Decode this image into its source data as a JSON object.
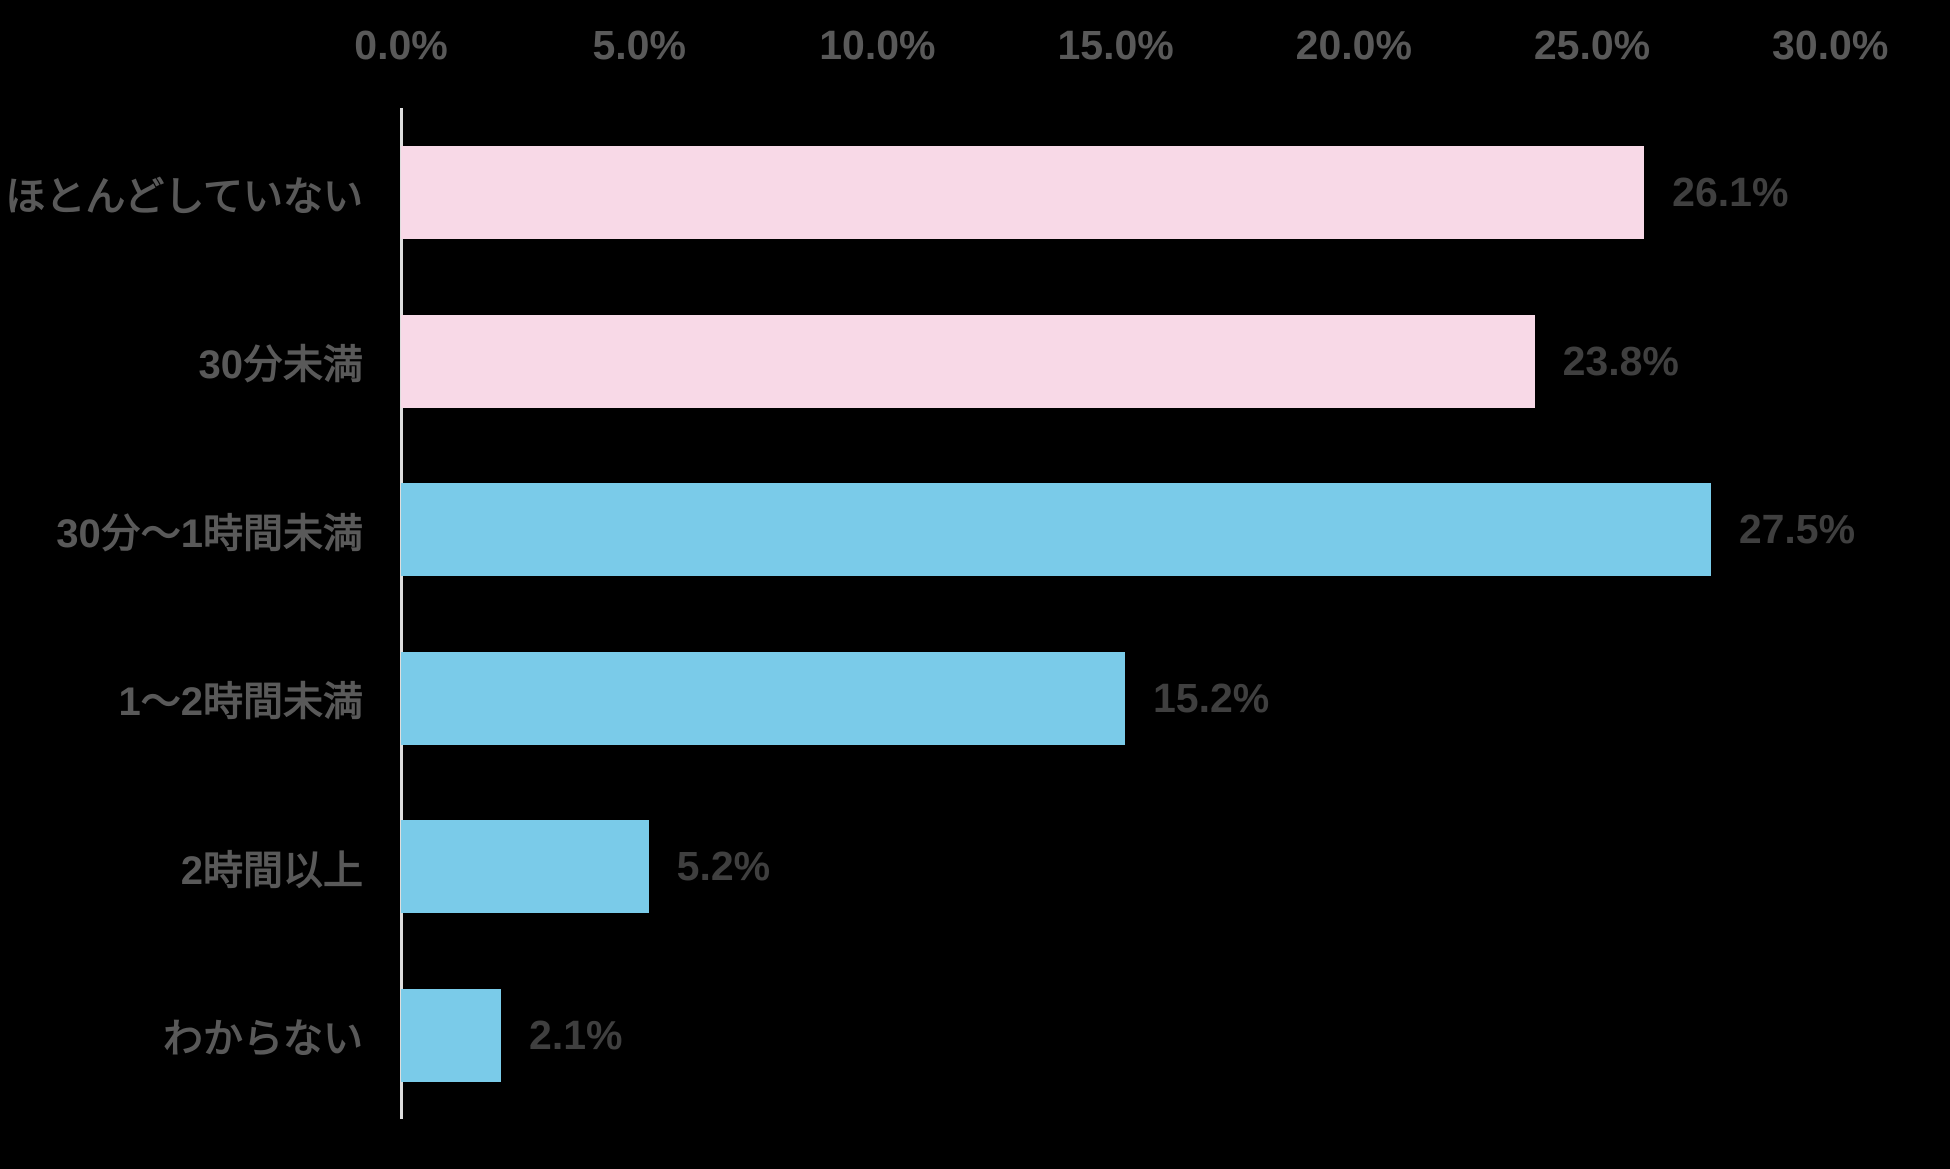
{
  "chart_data": {
    "type": "bar",
    "orientation": "horizontal",
    "categories": [
      "ほとんどしていない",
      "30分未満",
      "30分～1時間未満",
      "1～2時間未満",
      "2時間以上",
      "わからない"
    ],
    "values": [
      26.1,
      23.8,
      27.5,
      15.2,
      5.2,
      2.1
    ],
    "value_labels": [
      "26.1%",
      "23.8%",
      "27.5%",
      "15.2%",
      "5.2%",
      "2.1%"
    ],
    "bar_colors": [
      "#F8D9E7",
      "#F8D9E7",
      "#7ACBE9",
      "#7ACBE9",
      "#7ACBE9",
      "#7ACBE9"
    ],
    "x_axis": {
      "position": "top",
      "min": 0,
      "max": 30,
      "tick_step": 5,
      "tick_labels": [
        "0.0%",
        "5.0%",
        "10.0%",
        "15.0%",
        "20.0%",
        "25.0%",
        "30.0%"
      ]
    },
    "legend": "none",
    "grid": false,
    "colors": {
      "background": "#000000",
      "pink_bar": "#F8D9E7",
      "blue_bar": "#7ACBE9",
      "tick_text": "#595959",
      "category_text": "#595959",
      "value_text": "#3F3F3F",
      "axis_line": "#DEDEDE"
    }
  }
}
